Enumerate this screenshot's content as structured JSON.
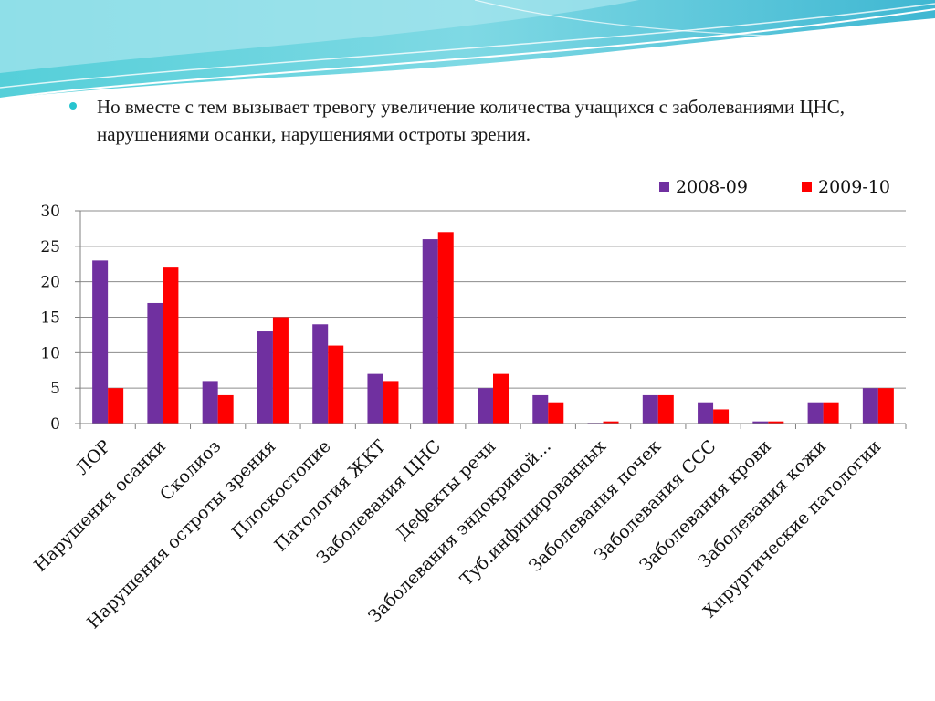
{
  "slide": {
    "bullet_text": "Но вместе с тем вызывает тревогу увеличение количества учащихся с заболеваниями ЦНС, нарушениями осанки, нарушениями остроты зрения.",
    "accent_color": "#27c4cf"
  },
  "chart_data": {
    "type": "bar",
    "title": "",
    "xlabel": "",
    "ylabel": "",
    "ylim": [
      0,
      30
    ],
    "yticks": [
      0,
      5,
      10,
      15,
      20,
      25,
      30
    ],
    "grid": true,
    "legend_position": "top-right",
    "categories": [
      "ЛОР",
      "Нарушения осанки",
      "Сколиоз",
      "Нарушения остроты зрения",
      "Плоскостопие",
      "Патология ЖКТ",
      "Заболевания ЦНС",
      "Дефекты речи",
      "Заболевания эндокриной...",
      "Туб.инфицированных",
      "Заболевания почек",
      "Заболевания ССС",
      "Заболевания крови",
      "Заболевания кожи",
      "Хирургические патологии"
    ],
    "series": [
      {
        "name": "2008-09",
        "color": "#7030a0",
        "values": [
          23,
          17,
          6,
          13,
          14,
          7,
          26,
          5,
          4,
          0.1,
          4,
          3,
          0.3,
          3,
          5
        ]
      },
      {
        "name": "2009-10",
        "color": "#ff0000",
        "values": [
          5,
          22,
          4,
          15,
          11,
          6,
          27,
          7,
          3,
          0.3,
          4,
          2,
          0.3,
          3,
          5
        ]
      }
    ]
  }
}
